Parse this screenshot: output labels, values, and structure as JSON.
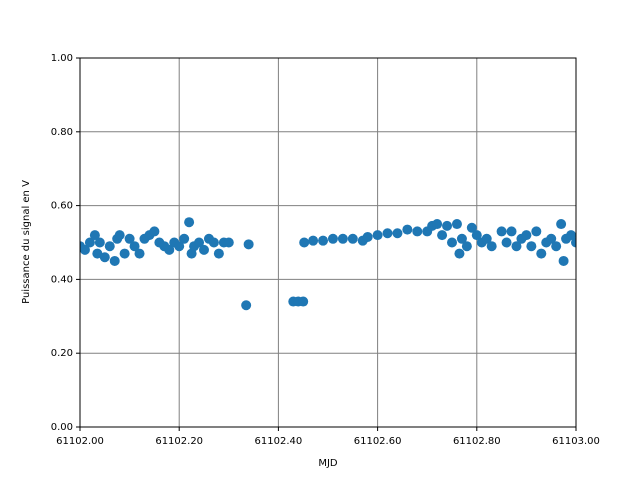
{
  "chart_data": {
    "type": "scatter",
    "x_label": "MJD",
    "y_label": "Puissance du signal en V",
    "color": "#1f77b4",
    "grid": true,
    "xlim": [
      61102.0,
      61103.0
    ],
    "xticks": [
      {
        "value": 61102.0,
        "label": "61102.00"
      },
      {
        "value": 61102.2,
        "label": "61102.20"
      },
      {
        "value": 61102.4,
        "label": "61102.40"
      },
      {
        "value": 61102.6,
        "label": "61102.60"
      },
      {
        "value": 61102.8,
        "label": "61102.80"
      },
      {
        "value": 61103.0,
        "label": "61103.00"
      }
    ],
    "ylim": [
      0,
      1
    ],
    "yticks": [
      {
        "value": 0,
        "label": "0.00"
      },
      {
        "value": 0.2,
        "label": "0.20"
      },
      {
        "value": 0.4,
        "label": "0.40"
      },
      {
        "value": 0.6,
        "label": "0.60"
      },
      {
        "value": 0.8,
        "label": "0.80"
      },
      {
        "value": 1,
        "label": "1.00"
      }
    ],
    "x": [
      61102.0,
      61102.01,
      61102.02,
      61102.03,
      61102.035,
      61102.04,
      61102.05,
      61102.06,
      61102.07,
      61102.075,
      61102.08,
      61102.09,
      61102.1,
      61102.11,
      61102.12,
      61102.13,
      61102.14,
      61102.15,
      61102.16,
      61102.17,
      61102.18,
      61102.19,
      61102.2,
      61102.21,
      61102.22,
      61102.225,
      61102.23,
      61102.24,
      61102.25,
      61102.26,
      61102.27,
      61102.28,
      61102.29,
      61102.3,
      61102.335,
      61102.34,
      61102.43,
      61102.44,
      61102.45,
      61102.452,
      61102.47,
      61102.49,
      61102.51,
      61102.53,
      61102.55,
      61102.57,
      61102.58,
      61102.6,
      61102.62,
      61102.64,
      61102.66,
      61102.68,
      61102.7,
      61102.71,
      61102.72,
      61102.73,
      61102.74,
      61102.75,
      61102.76,
      61102.765,
      61102.77,
      61102.78,
      61102.79,
      61102.8,
      61102.81,
      61102.82,
      61102.83,
      61102.85,
      61102.86,
      61102.87,
      61102.88,
      61102.89,
      61102.9,
      61102.91,
      61102.92,
      61102.93,
      61102.94,
      61102.95,
      61102.96,
      61102.97,
      61102.975,
      61102.98,
      61102.99,
      61103.0
    ],
    "values": [
      0.49,
      0.48,
      0.5,
      0.52,
      0.47,
      0.5,
      0.46,
      0.49,
      0.45,
      0.51,
      0.52,
      0.47,
      0.51,
      0.49,
      0.47,
      0.51,
      0.52,
      0.53,
      0.5,
      0.49,
      0.48,
      0.5,
      0.49,
      0.51,
      0.555,
      0.47,
      0.49,
      0.5,
      0.48,
      0.51,
      0.5,
      0.47,
      0.5,
      0.5,
      0.33,
      0.495,
      0.34,
      0.34,
      0.34,
      0.5,
      0.505,
      0.505,
      0.51,
      0.51,
      0.51,
      0.505,
      0.515,
      0.52,
      0.525,
      0.525,
      0.535,
      0.53,
      0.53,
      0.545,
      0.55,
      0.52,
      0.545,
      0.5,
      0.55,
      0.47,
      0.51,
      0.49,
      0.54,
      0.52,
      0.5,
      0.51,
      0.49,
      0.53,
      0.5,
      0.53,
      0.49,
      0.51,
      0.52,
      0.49,
      0.53,
      0.47,
      0.5,
      0.51,
      0.49,
      0.55,
      0.45,
      0.51,
      0.52,
      0.5
    ]
  }
}
